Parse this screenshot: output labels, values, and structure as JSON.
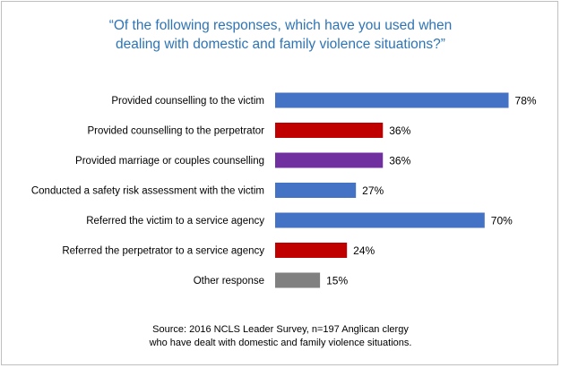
{
  "title_line1": "“Of the following responses, which have you used when",
  "title_line2": "dealing with domestic and family violence situations?”",
  "source_line1": "Source: 2016 NCLS Leader Survey, n=197 Anglican clergy",
  "source_line2": "who have dealt with domestic and family violence situations.",
  "colors": {
    "blue": "#4472c4",
    "red": "#c00000",
    "purple": "#7030a0",
    "grey": "#808080"
  },
  "chart_data": {
    "type": "bar",
    "orientation": "horizontal",
    "title": "“Of the following responses, which have you used when dealing with domestic and family violence situations?”",
    "value_suffix": "%",
    "xlim": [
      0,
      100
    ],
    "grid": false,
    "categories": [
      "Provided counselling to the victim",
      "Provided counselling to the perpetrator",
      "Provided marriage or couples counselling",
      "Conducted a safety risk assessment with the victim",
      "Referred the victim to a service agency",
      "Referred the perpetrator to a service agency",
      "Other response"
    ],
    "values": [
      78,
      36,
      36,
      27,
      70,
      24,
      15
    ],
    "bar_colors": [
      "#4472c4",
      "#c00000",
      "#7030a0",
      "#4472c4",
      "#4472c4",
      "#c00000",
      "#808080"
    ]
  }
}
